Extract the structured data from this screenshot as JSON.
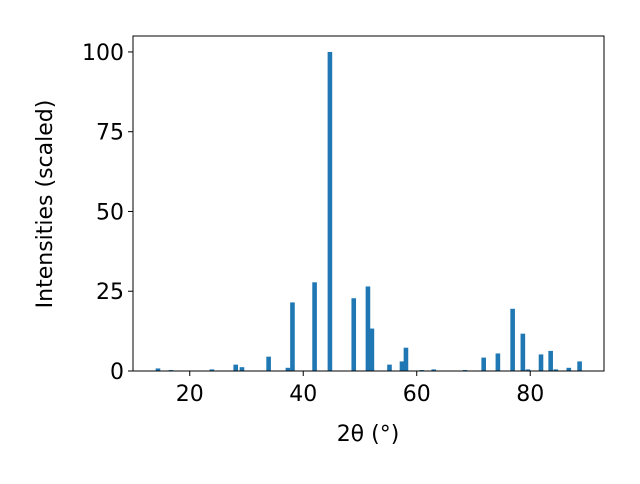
{
  "chart_data": {
    "type": "bar",
    "x_label": "2θ (°)",
    "y_label": "Intensities (scaled)",
    "x": [
      14.4,
      16.7,
      23.9,
      28.1,
      29.2,
      33.9,
      37.3,
      38.1,
      42.0,
      44.7,
      48.9,
      51.4,
      52.1,
      55.2,
      57.4,
      58.1,
      60.9,
      63.0,
      68.5,
      71.8,
      74.3,
      76.9,
      78.7,
      79.6,
      81.9,
      83.6,
      84.5,
      86.8,
      88.7
    ],
    "values": [
      0.8,
      0.3,
      0.5,
      2,
      1.2,
      4.5,
      1,
      21.5,
      27.8,
      100,
      22.8,
      26.5,
      13.3,
      2,
      3,
      7.3,
      0.3,
      0.5,
      0.3,
      4.2,
      5.5,
      19.5,
      11.7,
      0.5,
      5.2,
      6.3,
      0.5,
      1,
      3
    ],
    "color": "#1f77b4",
    "xlim": [
      10,
      93
    ],
    "ylim": [
      0,
      105
    ],
    "xticks": [
      20,
      40,
      60,
      80
    ],
    "yticks": [
      0,
      25,
      50,
      75,
      100
    ]
  }
}
